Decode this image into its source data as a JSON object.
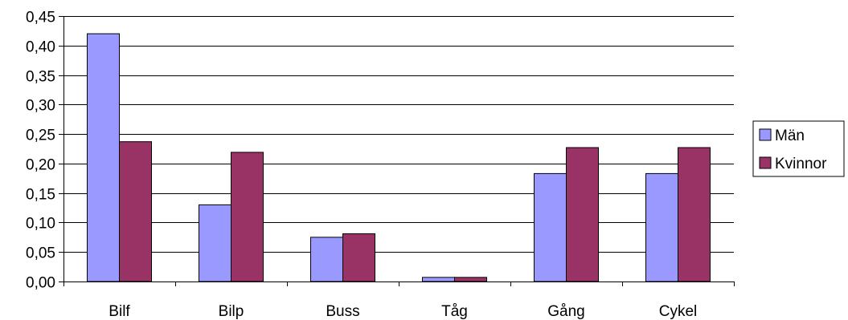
{
  "chart_data": {
    "type": "bar",
    "categories": [
      "Bilf",
      "Bilp",
      "Buss",
      "Tåg",
      "Gång",
      "Cykel"
    ],
    "series": [
      {
        "name": "Män",
        "values": [
          0.42,
          0.13,
          0.075,
          0.007,
          0.183,
          0.183
        ],
        "color": "#9999FF"
      },
      {
        "name": "Kvinnor",
        "values": [
          0.237,
          0.219,
          0.081,
          0.007,
          0.227,
          0.227
        ],
        "color": "#993366"
      }
    ],
    "ylim": [
      0,
      0.45
    ],
    "yticks": [
      "0,00",
      "0,05",
      "0,10",
      "0,15",
      "0,20",
      "0,25",
      "0,30",
      "0,35",
      "0,40",
      "0,45"
    ],
    "ytick_values": [
      0,
      0.05,
      0.1,
      0.15,
      0.2,
      0.25,
      0.3,
      0.35,
      0.4,
      0.45
    ],
    "grid": true,
    "legend": "right"
  }
}
